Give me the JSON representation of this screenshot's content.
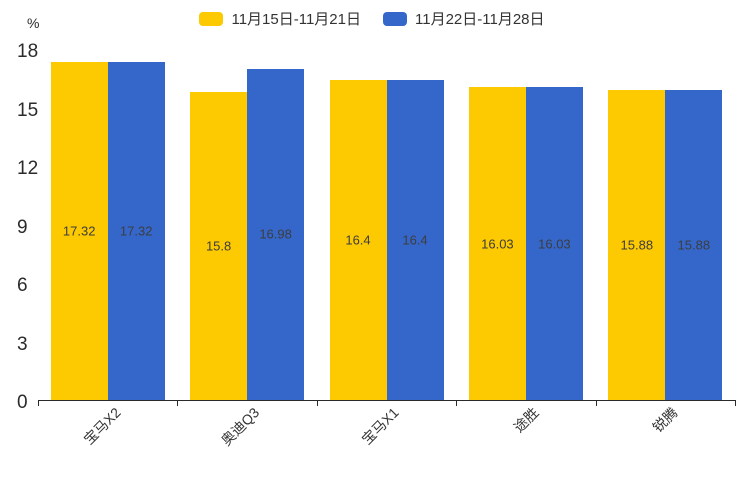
{
  "chart_data": {
    "type": "bar",
    "categories": [
      "宝马X2",
      "奥迪Q3",
      "宝马X1",
      "途胜",
      "锐腾"
    ],
    "series": [
      {
        "name": "11月15日-11月21日",
        "color": "#FDC901",
        "values": [
          17.32,
          15.8,
          16.4,
          16.03,
          15.88
        ]
      },
      {
        "name": "11月22日-11月28日",
        "color": "#3567CB",
        "values": [
          17.32,
          16.98,
          16.4,
          16.03,
          15.88
        ]
      }
    ],
    "data_labels": [
      [
        "17.32",
        "15.8",
        "16.4",
        "16.03",
        "15.88"
      ],
      [
        "17.32",
        "16.98",
        "16.4",
        "16.03",
        "15.88"
      ]
    ],
    "ylabel": "%",
    "yticks": [
      0,
      3,
      6,
      9,
      12,
      15,
      18
    ],
    "ylim": [
      0,
      18
    ],
    "grid": false,
    "legend_position": "top",
    "value_label_position": "inside-center",
    "category_label_rotation_deg": -45,
    "colors": {
      "axis": "#2a2a2a",
      "tick_text": "#2b2b2b",
      "value_text": "#3d3d3d"
    }
  }
}
